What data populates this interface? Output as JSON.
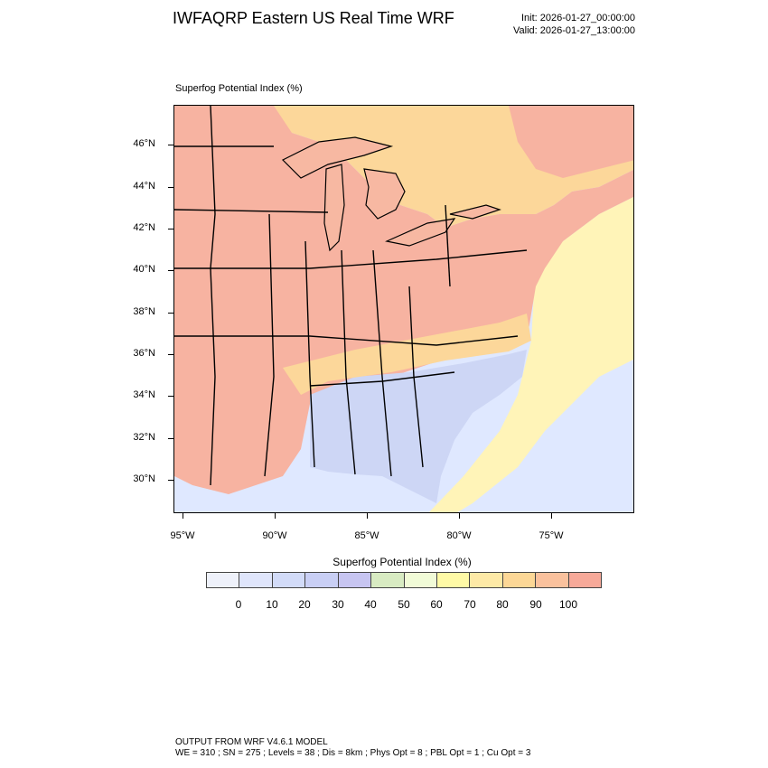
{
  "header": {
    "title": "IWFAQRP Eastern US Real Time WRF",
    "init": "Init: 2026-01-27_00:00:00",
    "valid": "Valid: 2026-01-27_13:00:00"
  },
  "map": {
    "field_label": "Superfog Potential Index   (%)",
    "lat_labels": [
      "46°N",
      "44°N",
      "42°N",
      "40°N",
      "38°N",
      "36°N",
      "34°N",
      "32°N",
      "30°N"
    ],
    "lon_labels": [
      "95°W",
      "90°W",
      "85°W",
      "80°W",
      "75°W"
    ],
    "colors": {
      "ocean_low": "#dfe8ff",
      "ocean_mid": "#e6f0ff",
      "ocean_warm": "#fff4b8",
      "land_high": "#f7b3a1",
      "land_mid": "#fcd79a",
      "land_low": "#cdd6f5",
      "lake": "#f7b8a2",
      "borders": "#000000"
    }
  },
  "colorbar": {
    "title": "Superfog Potential Index  (%)",
    "ticks": [
      "0",
      "10",
      "20",
      "30",
      "40",
      "50",
      "60",
      "70",
      "80",
      "90",
      "100"
    ],
    "colors": [
      "#eef1fa",
      "#dfe5fb",
      "#d2dbf8",
      "#c9cff5",
      "#c7c5f1",
      "#d8ebc2",
      "#f1fbd7",
      "#fffaa6",
      "#fde9a6",
      "#fcd796",
      "#fac19d",
      "#f7a999"
    ]
  },
  "footer": {
    "line1": "OUTPUT FROM WRF V4.6.1 MODEL",
    "line2": "WE = 310 ; SN = 275 ; Levels = 38 ; Dis = 8km ; Phys Opt = 8 ; PBL Opt = 1 ; Cu Opt = 3"
  }
}
